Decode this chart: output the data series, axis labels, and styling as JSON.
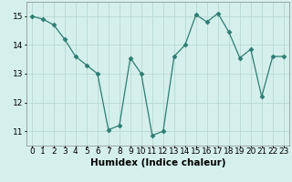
{
  "x": [
    0,
    1,
    2,
    3,
    4,
    5,
    6,
    7,
    8,
    9,
    10,
    11,
    12,
    13,
    14,
    15,
    16,
    17,
    18,
    19,
    20,
    21,
    22,
    23
  ],
  "y": [
    15.0,
    14.9,
    14.7,
    14.2,
    13.6,
    13.3,
    13.0,
    11.05,
    11.2,
    13.55,
    13.0,
    10.85,
    11.0,
    13.6,
    14.0,
    15.05,
    14.8,
    15.1,
    14.45,
    13.55,
    13.85,
    12.2,
    13.6,
    13.6
  ],
  "line_color": "#2d7d72",
  "marker": "D",
  "marker_size": 2.5,
  "bg_color": "#d5f0ec",
  "grid_color": "#b8d9d4",
  "xlabel": "Humidex (Indice chaleur)",
  "ylim": [
    10.5,
    15.5
  ],
  "xlim": [
    -0.5,
    23.5
  ],
  "yticks": [
    11,
    12,
    13,
    14,
    15
  ],
  "xticks": [
    0,
    1,
    2,
    3,
    4,
    5,
    6,
    7,
    8,
    9,
    10,
    11,
    12,
    13,
    14,
    15,
    16,
    17,
    18,
    19,
    20,
    21,
    22,
    23
  ],
  "xlabel_fontsize": 7.5,
  "tick_fontsize": 6.5,
  "spine_color": "#888888"
}
